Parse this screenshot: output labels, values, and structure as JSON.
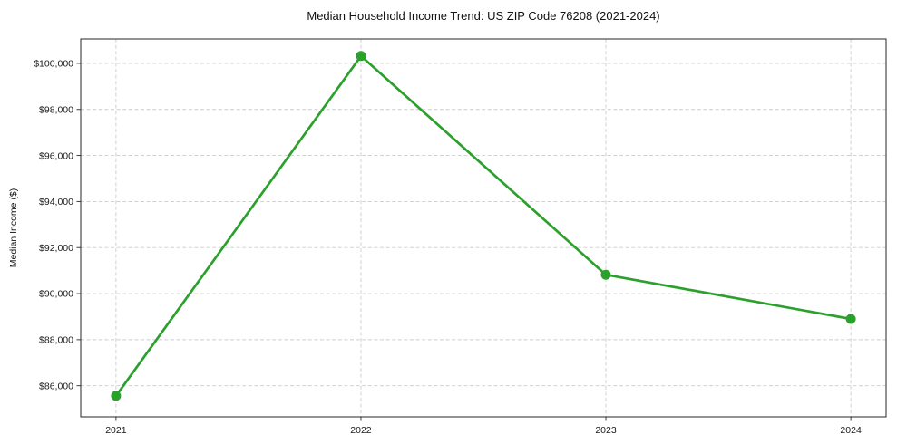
{
  "chart_data": {
    "type": "line",
    "title": "Median Household Income Trend: US ZIP Code 76208 (2021-2024)",
    "xlabel": "",
    "ylabel": "Median Income ($)",
    "x": [
      2021,
      2022,
      2023,
      2024
    ],
    "xtick_labels": [
      "2021",
      "2022",
      "2023",
      "2024"
    ],
    "values": [
      85560,
      100320,
      90820,
      88900
    ],
    "yticks": [
      86000,
      88000,
      90000,
      92000,
      94000,
      96000,
      98000,
      100000
    ],
    "ytick_labels": [
      "$86,000",
      "$88,000",
      "$90,000",
      "$92,000",
      "$94,000",
      "$96,000",
      "$98,000",
      "$100,000"
    ],
    "ylim": [
      84650,
      101060
    ],
    "xlim": [
      2020.856,
      2024.144
    ],
    "line_color": "#2ca02c",
    "marker": "circle",
    "marker_size": 5.5,
    "line_width": 2.7,
    "grid": {
      "visible": true,
      "style": "dashed",
      "color": "#cccccc",
      "axes": "both"
    },
    "legend": "none",
    "background": "#ffffff"
  }
}
